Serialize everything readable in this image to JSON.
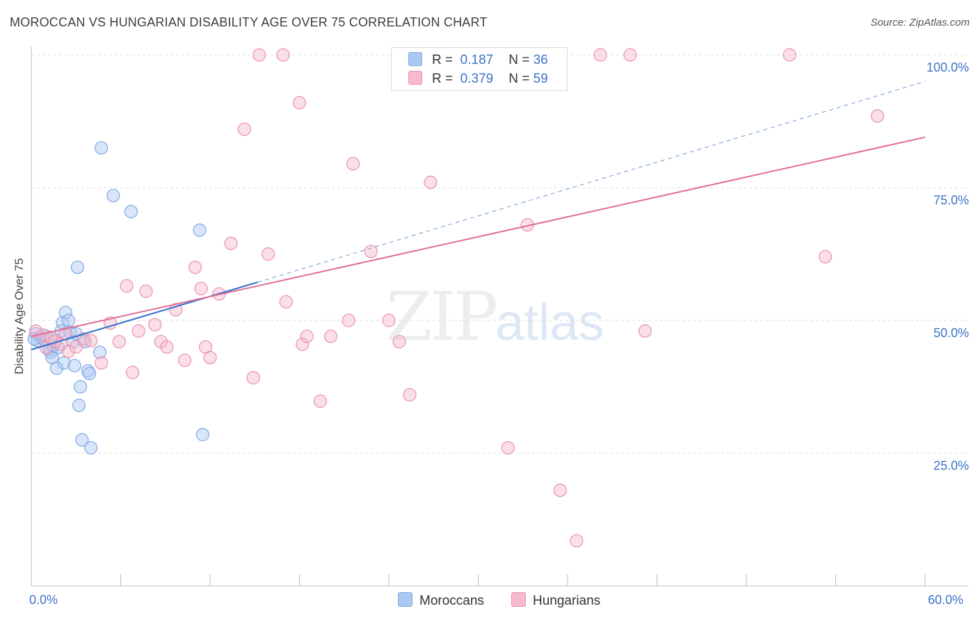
{
  "title": "MOROCCAN VS HUNGARIAN DISABILITY AGE OVER 75 CORRELATION CHART",
  "source": "Source: ZipAtlas.com",
  "watermark": {
    "zip": "ZIP",
    "atlas": "atlas"
  },
  "legend": {
    "rows": [
      {
        "r_label": "R =",
        "r_value": "0.187",
        "n_label": "N =",
        "n_value": "36",
        "color": "#aac8f3"
      },
      {
        "r_label": "R =",
        "r_value": "0.379",
        "n_label": "N =",
        "n_value": "59",
        "color": "#f7b9cb"
      }
    ]
  },
  "bottom_legend": {
    "items": [
      {
        "label": "Moroccans",
        "color": "#aac8f3"
      },
      {
        "label": "Hungarians",
        "color": "#f7b9cb"
      }
    ]
  },
  "axis": {
    "x_min_label": "0.0%",
    "x_max_label": "60.0%",
    "y_ticks": [
      "100.0%",
      "75.0%",
      "50.0%",
      "25.0%"
    ]
  },
  "chart_data": {
    "type": "scatter",
    "title": "MOROCCAN VS HUNGARIAN DISABILITY AGE OVER 75 CORRELATION CHART",
    "xlabel": "",
    "ylabel": "Disability Age Over 75",
    "xlim": [
      0,
      60
    ],
    "ylim": [
      0,
      102
    ],
    "grid": true,
    "legend_position": "top-center",
    "series": [
      {
        "name": "Moroccans",
        "color": "#7fa8e3",
        "fill": "#aac8f3",
        "r": 0.187,
        "n": 36,
        "trend": {
          "x0": 0.0,
          "y0": 44.5,
          "x1": 15.2,
          "y1": 57.2,
          "dashed_to_x": 60.0,
          "dashed_to_y": 95.0,
          "color": "#2e6fd0"
        },
        "points": [
          [
            0.3,
            47.5
          ],
          [
            0.4,
            46.2
          ],
          [
            0.6,
            46.8
          ],
          [
            0.8,
            46.5
          ],
          [
            1.0,
            47.0
          ],
          [
            1.2,
            44.5
          ],
          [
            1.3,
            44.0
          ],
          [
            1.4,
            43.0
          ],
          [
            1.5,
            45.2
          ],
          [
            1.6,
            46.3
          ],
          [
            1.7,
            41.0
          ],
          [
            1.8,
            44.9
          ],
          [
            2.0,
            48.0
          ],
          [
            2.1,
            49.6
          ],
          [
            2.2,
            42.0
          ],
          [
            2.3,
            51.5
          ],
          [
            2.5,
            50.0
          ],
          [
            2.6,
            47.8
          ],
          [
            2.8,
            46.0
          ],
          [
            2.9,
            41.5
          ],
          [
            3.0,
            47.5
          ],
          [
            3.1,
            60.0
          ],
          [
            3.2,
            34.0
          ],
          [
            3.3,
            37.5
          ],
          [
            3.4,
            27.5
          ],
          [
            3.6,
            46.0
          ],
          [
            3.8,
            40.5
          ],
          [
            3.9,
            40.0
          ],
          [
            4.0,
            26.0
          ],
          [
            4.6,
            44.0
          ],
          [
            4.7,
            82.5
          ],
          [
            5.5,
            73.5
          ],
          [
            6.7,
            70.5
          ],
          [
            11.3,
            67.0
          ],
          [
            11.5,
            28.5
          ],
          [
            0.2,
            46.5
          ]
        ]
      },
      {
        "name": "Hungarians",
        "color": "#ea90ac",
        "fill": "#f7b9cb",
        "r": 0.379,
        "n": 59,
        "trend": {
          "x0": 0.0,
          "y0": 47.0,
          "x1": 60.0,
          "y1": 84.5,
          "color": "#e26b94"
        },
        "points": [
          [
            0.3,
            48.0
          ],
          [
            0.8,
            47.2
          ],
          [
            1.0,
            44.8
          ],
          [
            1.6,
            46.0
          ],
          [
            2.0,
            45.5
          ],
          [
            2.5,
            44.2
          ],
          [
            3.0,
            45.0
          ],
          [
            3.5,
            46.5
          ],
          [
            4.0,
            46.2
          ],
          [
            4.7,
            42.0
          ],
          [
            5.3,
            49.5
          ],
          [
            5.9,
            46.0
          ],
          [
            6.4,
            56.5
          ],
          [
            6.8,
            40.2
          ],
          [
            7.2,
            48.0
          ],
          [
            7.7,
            55.5
          ],
          [
            8.3,
            49.2
          ],
          [
            8.7,
            46.0
          ],
          [
            9.1,
            45.0
          ],
          [
            9.7,
            52.0
          ],
          [
            10.3,
            42.5
          ],
          [
            11.0,
            60.0
          ],
          [
            11.4,
            56.0
          ],
          [
            11.7,
            45.0
          ],
          [
            12.0,
            43.0
          ],
          [
            12.6,
            55.0
          ],
          [
            13.4,
            64.5
          ],
          [
            14.3,
            86.0
          ],
          [
            14.9,
            39.2
          ],
          [
            15.3,
            100.0
          ],
          [
            15.9,
            62.5
          ],
          [
            16.9,
            100.0
          ],
          [
            17.1,
            53.5
          ],
          [
            18.0,
            91.0
          ],
          [
            18.2,
            45.5
          ],
          [
            18.5,
            47.0
          ],
          [
            19.4,
            34.8
          ],
          [
            20.1,
            47.0
          ],
          [
            21.3,
            50.0
          ],
          [
            21.6,
            79.5
          ],
          [
            22.8,
            63.0
          ],
          [
            24.0,
            50.0
          ],
          [
            24.7,
            46.0
          ],
          [
            25.4,
            36.0
          ],
          [
            26.8,
            76.0
          ],
          [
            28.1,
            100.0
          ],
          [
            30.1,
            100.0
          ],
          [
            32.0,
            26.0
          ],
          [
            33.3,
            68.0
          ],
          [
            35.5,
            18.0
          ],
          [
            36.6,
            8.5
          ],
          [
            38.2,
            100.0
          ],
          [
            40.2,
            100.0
          ],
          [
            41.2,
            48.0
          ],
          [
            50.9,
            100.0
          ],
          [
            53.3,
            62.0
          ],
          [
            56.8,
            88.5
          ],
          [
            2.3,
            47.5
          ],
          [
            1.3,
            46.8
          ]
        ]
      }
    ]
  }
}
